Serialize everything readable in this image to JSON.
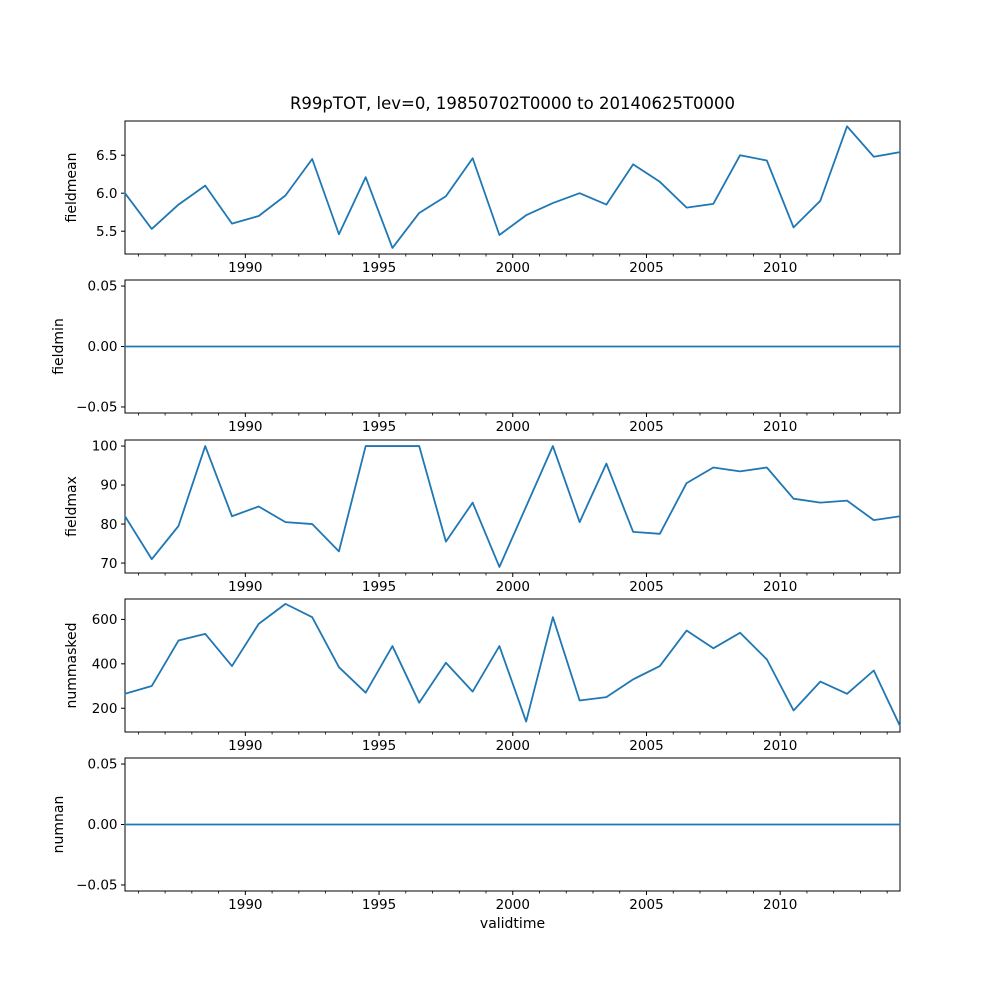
{
  "figure": {
    "title": "R99pTOT, lev=0, 19850702T0000 to 20140625T0000",
    "background_color": "#ffffff",
    "line_color": "#1f77b4",
    "axis_color": "#000000",
    "text_color": "#000000"
  },
  "x_axis": {
    "label": "validtime",
    "xlim": [
      1985.5,
      2014.48
    ],
    "x_values": [
      1985.5,
      1986.5,
      1987.5,
      1988.5,
      1989.5,
      1990.5,
      1991.5,
      1992.5,
      1993.5,
      1994.5,
      1995.5,
      1996.5,
      1997.5,
      1998.5,
      1999.5,
      2000.5,
      2001.5,
      2002.5,
      2003.5,
      2004.5,
      2005.5,
      2006.5,
      2007.5,
      2008.5,
      2009.5,
      2010.5,
      2011.5,
      2012.5,
      2013.5,
      2014.48
    ],
    "major_ticks": [
      1990,
      1995,
      2000,
      2005,
      2010
    ],
    "major_tick_labels": [
      "1990",
      "1995",
      "2000",
      "2005",
      "2010"
    ],
    "minor_tick_step_years": 1
  },
  "chart_data": [
    {
      "type": "line",
      "ylabel": "fieldmean",
      "values": [
        6.0,
        5.53,
        5.85,
        6.1,
        5.6,
        5.7,
        5.97,
        6.45,
        5.46,
        6.21,
        5.28,
        5.74,
        5.96,
        6.46,
        5.45,
        5.71,
        5.87,
        6.0,
        5.85,
        6.38,
        6.15,
        5.81,
        5.86,
        6.5,
        6.43,
        5.55,
        5.9,
        6.88,
        6.48,
        6.54
      ],
      "ylim": [
        5.2,
        6.95
      ],
      "yticks": [
        5.5,
        6.0,
        6.5
      ],
      "ytick_labels": [
        "5.5",
        "6.0",
        "6.5"
      ]
    },
    {
      "type": "line",
      "ylabel": "fieldmin",
      "values": [
        0,
        0,
        0,
        0,
        0,
        0,
        0,
        0,
        0,
        0,
        0,
        0,
        0,
        0,
        0,
        0,
        0,
        0,
        0,
        0,
        0,
        0,
        0,
        0,
        0,
        0,
        0,
        0,
        0,
        0
      ],
      "ylim": [
        -0.055,
        0.055
      ],
      "yticks": [
        0.05,
        0.0,
        -0.05
      ],
      "ytick_labels": [
        "0.05",
        "0.00",
        "−0.05"
      ]
    },
    {
      "type": "line",
      "ylabel": "fieldmax",
      "values": [
        82,
        71,
        79.5,
        100,
        82,
        84.5,
        80.5,
        80,
        73,
        100,
        100,
        100,
        75.5,
        85.5,
        69,
        84.5,
        100,
        80.5,
        95.5,
        78,
        77.5,
        90.5,
        94.5,
        93.5,
        94.5,
        86.5,
        85.5,
        86,
        81,
        82
      ],
      "ylim": [
        67.45,
        101.55
      ],
      "yticks": [
        70,
        80,
        90,
        100
      ],
      "ytick_labels": [
        "70",
        "80",
        "90",
        "100"
      ]
    },
    {
      "type": "line",
      "ylabel": "nummasked",
      "values": [
        265,
        300,
        505,
        535,
        390,
        580,
        670,
        610,
        385,
        270,
        480,
        225,
        405,
        275,
        480,
        140,
        610,
        235,
        250,
        330,
        390,
        550,
        470,
        540,
        420,
        190,
        320,
        265,
        370,
        120
      ],
      "ylim": [
        93,
        692
      ],
      "yticks": [
        200,
        400,
        600
      ],
      "ytick_labels": [
        "200",
        "400",
        "600"
      ]
    },
    {
      "type": "line",
      "ylabel": "numnan",
      "values": [
        0,
        0,
        0,
        0,
        0,
        0,
        0,
        0,
        0,
        0,
        0,
        0,
        0,
        0,
        0,
        0,
        0,
        0,
        0,
        0,
        0,
        0,
        0,
        0,
        0,
        0,
        0,
        0,
        0,
        0
      ],
      "ylim": [
        -0.055,
        0.055
      ],
      "yticks": [
        0.05,
        0.0,
        -0.05
      ],
      "ytick_labels": [
        "0.05",
        "0.00",
        "−0.05"
      ]
    }
  ]
}
